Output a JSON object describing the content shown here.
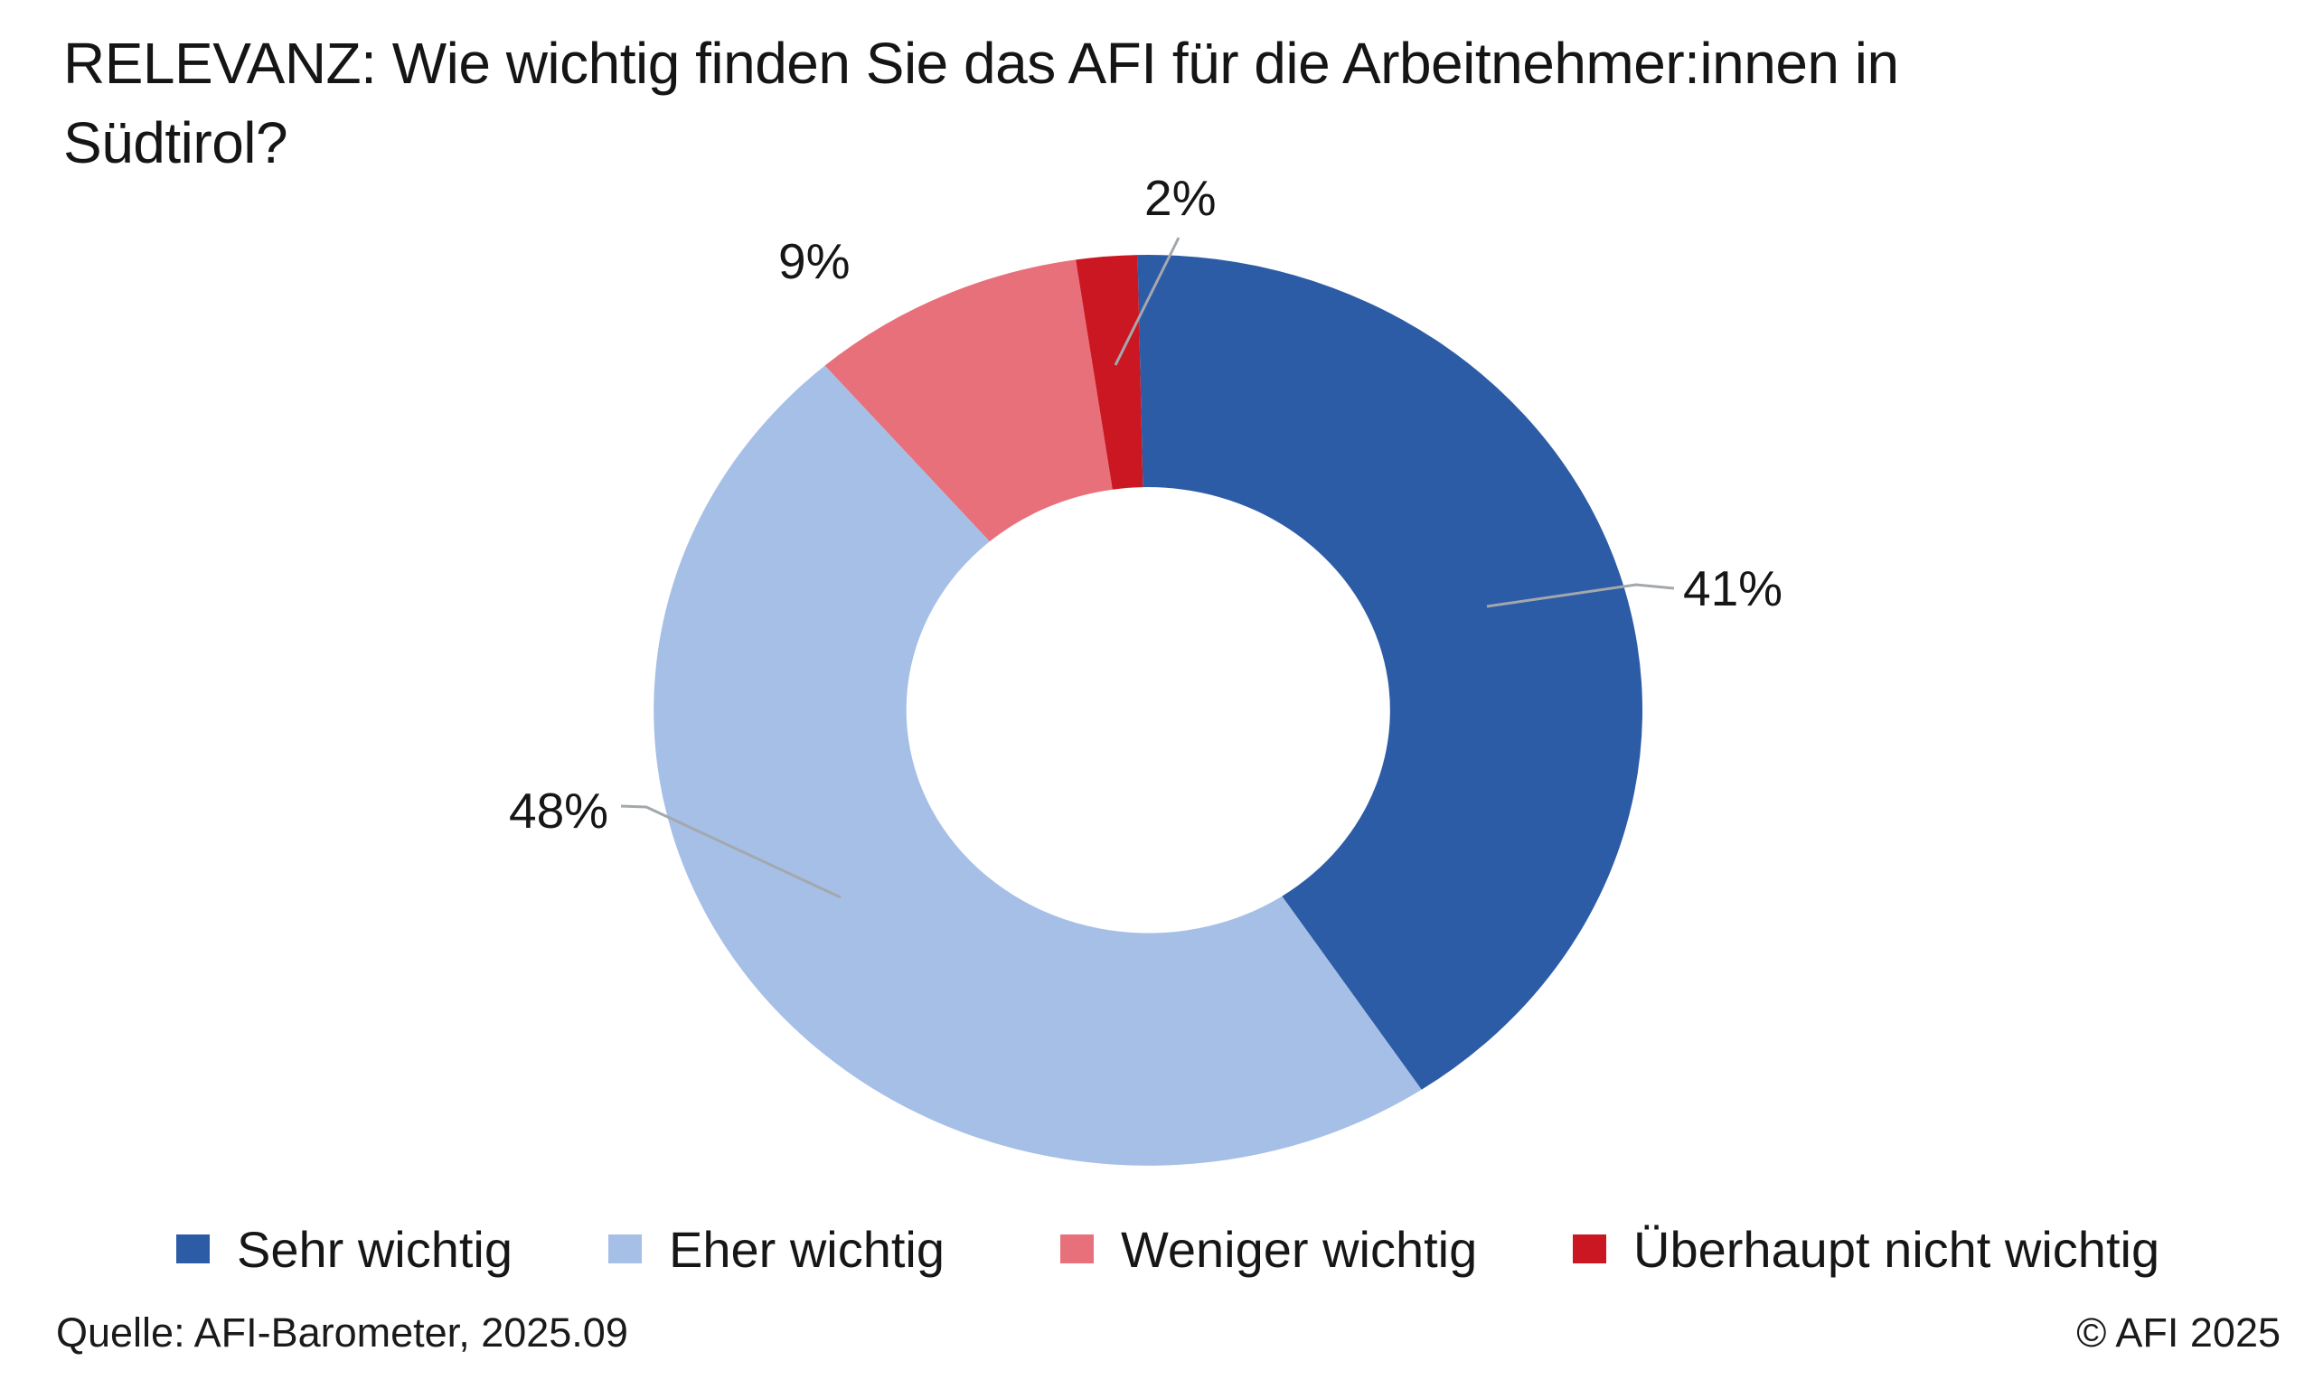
{
  "title": {
    "line1": "RELEVANZ: Wie wichtig finden Sie das AFI für die Arbeitnehmer:innen in",
    "line2": "Südtirol?"
  },
  "chart_data": {
    "type": "pie",
    "variant": "donut",
    "title": "RELEVANZ: Wie wichtig finden Sie das AFI für die Arbeitnehmer:innen in Südtirol?",
    "categories": [
      "Sehr wichtig",
      "Eher wichtig",
      "Weniger wichtig",
      "Überhaupt nicht wichtig"
    ],
    "values": [
      41,
      48,
      9,
      2
    ],
    "value_labels": [
      "41%",
      "48%",
      "9%",
      "2%"
    ],
    "colors": [
      "#2D5CA7",
      "#A6BFE7",
      "#E7707B",
      "#CB1722"
    ],
    "unit": "%",
    "start": "12-oclock",
    "direction": "clockwise",
    "donut_hole_ratio": 0.49,
    "legend_position": "bottom",
    "leader_line_color": "#A3A8AD"
  },
  "footer": {
    "source": "Quelle: AFI-Barometer, 2025.09",
    "copyright": "© AFI 2025"
  }
}
